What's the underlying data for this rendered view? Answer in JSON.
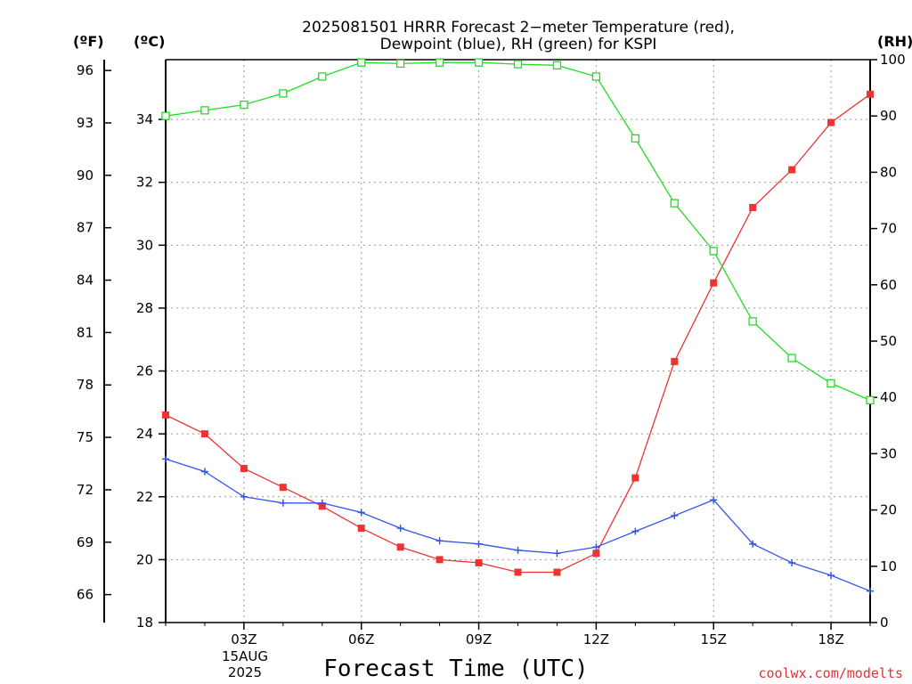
{
  "chart_data": {
    "type": "line",
    "title": "2025081501 HRRR Forecast 2−meter Temperature (red),",
    "subtitle": "Dewpoint (blue), RH (green) for KSPI",
    "xlabel": "Forecast Time (UTC)",
    "date_line1": "15AUG",
    "date_line2": "2025",
    "credit": "coolwx.com/modelts",
    "unit_left_f": "(ºF)",
    "unit_left_c": "(ºC)",
    "unit_right": "(RH)",
    "x_tick_labels": [
      "03Z",
      "06Z",
      "09Z",
      "12Z",
      "15Z",
      "18Z"
    ],
    "x_tick_hours": [
      3,
      6,
      9,
      12,
      15,
      18
    ],
    "x_hours": [
      1,
      2,
      3,
      4,
      5,
      6,
      7,
      8,
      9,
      10,
      11,
      12,
      13,
      14,
      15,
      16,
      17,
      18,
      19
    ],
    "xlim": [
      1,
      19
    ],
    "ylim_c": [
      18,
      35.9
    ],
    "ylim_rh": [
      0,
      100
    ],
    "y_ticks_c": [
      18,
      20,
      22,
      24,
      26,
      28,
      30,
      32,
      34
    ],
    "y_ticks_f": [
      66,
      69,
      72,
      75,
      78,
      81,
      84,
      87,
      90,
      93,
      96
    ],
    "y_ticks_rh": [
      0,
      10,
      20,
      30,
      40,
      50,
      60,
      70,
      80,
      90,
      100
    ],
    "grid": true,
    "series": [
      {
        "name": "Temperature",
        "color": "#ee3333",
        "marker": "filled-square",
        "axis": "c",
        "values": [
          24.6,
          24.0,
          22.9,
          22.3,
          21.7,
          21.0,
          20.4,
          20.0,
          19.9,
          19.6,
          19.6,
          20.2,
          22.6,
          26.3,
          28.8,
          31.2,
          32.4,
          33.9,
          34.8
        ]
      },
      {
        "name": "Dewpoint",
        "color": "#3355ee",
        "marker": "plus",
        "axis": "c",
        "values": [
          23.2,
          22.8,
          22.0,
          21.8,
          21.8,
          21.5,
          21.0,
          20.6,
          20.5,
          20.3,
          20.2,
          20.4,
          20.9,
          21.4,
          21.9,
          20.5,
          19.9,
          19.5,
          19.0
        ]
      },
      {
        "name": "RH",
        "color": "#22dd22",
        "marker": "open-square",
        "axis": "rh",
        "values": [
          90,
          91,
          92,
          94,
          97,
          99.5,
          99.3,
          99.5,
          99.5,
          99.2,
          99,
          97,
          86,
          74.5,
          66,
          53.5,
          47,
          42.5,
          39.5
        ]
      }
    ]
  }
}
